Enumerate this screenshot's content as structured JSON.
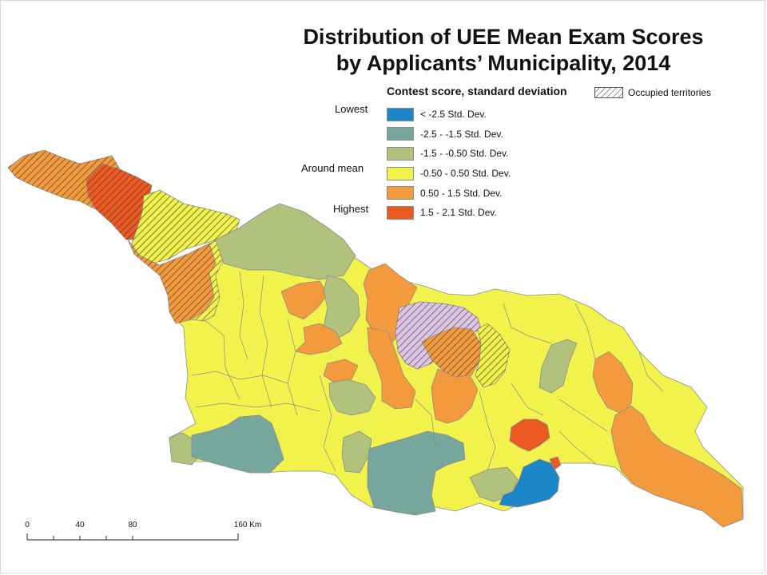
{
  "title": {
    "line1": "Distribution of UEE Mean Exam Scores",
    "line2": "by Applicants’ Municipality, 2014"
  },
  "legend": {
    "heading": "Contest score, standard deviation",
    "occupied_label": "Occupied territories",
    "side_labels": {
      "lowest": "Lowest",
      "around_mean": "Around mean",
      "highest": "Highest"
    },
    "classes": [
      {
        "label": "< -2.5 Std. Dev.",
        "color": "#1c86c8"
      },
      {
        "label": "-2.5 - -1.5 Std. Dev.",
        "color": "#76a69c"
      },
      {
        "label": "-1.5 - -0.50 Std. Dev.",
        "color": "#b0c27c"
      },
      {
        "label": "-0.50 - 0.50 Std. Dev.",
        "color": "#f2f24c"
      },
      {
        "label": "0.50 - 1.5 Std. Dev.",
        "color": "#f29a3c"
      },
      {
        "label": "1.5 - 2.1 Std. Dev.",
        "color": "#ec5a22"
      }
    ]
  },
  "scale": {
    "ticks": [
      "0",
      "40",
      "80",
      "160 Km"
    ]
  },
  "colors": {
    "border": "#8c8c8c",
    "hatch": "#333333",
    "occupied_fill": "#dcc4e2"
  }
}
